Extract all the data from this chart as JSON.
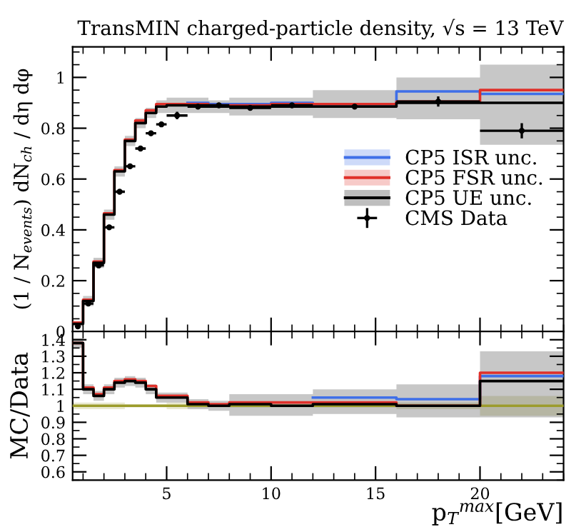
{
  "chart_data": [
    {
      "type": "step",
      "title": "TransMIN charged-particle density, √s = 13 TeV",
      "ylabel": "(1 / N$_{events}$) dN$_{ch}$ / dη dφ",
      "xlim": [
        0.5,
        24
      ],
      "ylim": [
        0,
        1.12
      ],
      "xticks": [
        {
          "value": 5,
          "label": null
        },
        {
          "value": 10,
          "label": null
        },
        {
          "value": 15,
          "label": null
        },
        {
          "value": 20,
          "label": null
        }
      ],
      "yticks": [
        0,
        0.2,
        0.4,
        0.6,
        0.8,
        1
      ],
      "tick_labels": "y",
      "grid": false,
      "legend": "right",
      "x": [
        0.5,
        1,
        1.5,
        2,
        2.5,
        3,
        3.5,
        4,
        4.5,
        5,
        6,
        7,
        8,
        10,
        12,
        16,
        20,
        24
      ],
      "series": [
        {
          "name": "CP5 ISR unc.",
          "color": "#3f6fe8",
          "values": [
            null,
            null,
            null,
            null,
            null,
            null,
            null,
            null,
            null,
            null,
            0.9,
            0.895,
            0.895,
            0.9,
            0.895,
            0.945,
            0.935,
            0.935
          ]
        },
        {
          "name": "CP5 FSR unc.",
          "color": "#e0302a",
          "values": [
            0.035,
            0.125,
            0.275,
            0.465,
            0.635,
            0.755,
            0.83,
            0.87,
            0.895,
            0.895,
            0.895,
            0.89,
            0.89,
            0.895,
            0.895,
            0.905,
            0.95,
            0.95
          ]
        },
        {
          "name": "CP5 UE unc.",
          "color": "#000000",
          "values": [
            0.03,
            0.12,
            0.27,
            0.46,
            0.63,
            0.75,
            0.82,
            0.86,
            0.885,
            0.89,
            0.89,
            0.885,
            0.885,
            0.885,
            0.885,
            0.9,
            0.9,
            0.9
          ],
          "lower": [
            0.02,
            0.1,
            0.25,
            0.44,
            0.61,
            0.73,
            0.8,
            0.84,
            0.86,
            0.86,
            0.86,
            0.86,
            0.85,
            0.85,
            0.84,
            0.835,
            0.735,
            0.735
          ],
          "upper": [
            0.04,
            0.14,
            0.29,
            0.48,
            0.65,
            0.77,
            0.84,
            0.88,
            0.91,
            0.92,
            0.92,
            0.91,
            0.92,
            0.92,
            0.95,
            1.0,
            1.05,
            1.05
          ]
        },
        {
          "name": "CMS Data",
          "type": "scatter",
          "color": "#000000",
          "marker": "circle",
          "x": [
            0.75,
            1.25,
            1.75,
            2.25,
            2.75,
            3.25,
            3.75,
            4.25,
            4.75,
            5.5,
            6.5,
            7.5,
            9,
            11,
            14,
            18,
            22
          ],
          "values": [
            0.02,
            0.11,
            0.26,
            0.41,
            0.55,
            0.65,
            0.72,
            0.78,
            0.815,
            0.85,
            0.885,
            0.89,
            0.88,
            0.89,
            0.885,
            0.905,
            0.79
          ],
          "errors": [
            null,
            0.01,
            0.01,
            0.01,
            0.01,
            0.01,
            0.01,
            0.01,
            0.01,
            0.015,
            0.01,
            0.01,
            0.01,
            0.01,
            0.01,
            0.02,
            0.03
          ],
          "xerrors": [
            null,
            0.25,
            0.25,
            0.25,
            0.25,
            0.25,
            0.25,
            0.25,
            0.25,
            0.5,
            0.5,
            0.5,
            1,
            1,
            2,
            2,
            2
          ]
        }
      ]
    },
    {
      "type": "step",
      "xlabel": "p$_{T}$$^{max}$[GeV]",
      "ylabel": "MC/Data",
      "xlim": [
        0.5,
        24
      ],
      "ylim": [
        0.55,
        1.45
      ],
      "xticks": [
        5,
        10,
        15,
        20
      ],
      "yticks": [
        0.6,
        0.7,
        0.8,
        0.9,
        1,
        1.1,
        1.2,
        1.3,
        1.4
      ],
      "grid": false,
      "x": [
        0.5,
        1,
        1.5,
        2,
        2.5,
        3,
        3.5,
        4,
        4.5,
        5,
        6,
        7,
        8,
        10,
        12,
        16,
        20,
        24
      ],
      "series": [
        {
          "color": "#9c9c2c",
          "values": [
            1,
            1,
            1,
            1,
            1,
            1,
            1,
            1,
            1,
            1,
            1,
            1,
            1,
            1,
            1,
            1,
            1,
            1
          ],
          "lower": [
            0.98,
            0.98,
            0.98,
            0.98,
            0.98,
            0.99,
            0.99,
            0.99,
            0.99,
            0.98,
            0.99,
            0.99,
            0.99,
            0.99,
            0.99,
            0.98,
            0.94,
            0.94
          ],
          "upper": [
            1.02,
            1.02,
            1.02,
            1.02,
            1.02,
            1.01,
            1.01,
            1.01,
            1.01,
            1.02,
            1.01,
            1.01,
            1.01,
            1.01,
            1.01,
            1.02,
            1.06,
            1.06
          ]
        },
        {
          "color": "#3f6fe8",
          "values": [
            null,
            null,
            null,
            null,
            null,
            null,
            null,
            null,
            null,
            null,
            null,
            null,
            null,
            null,
            1.05,
            1.04,
            1.18,
            1.18
          ]
        },
        {
          "color": "#e0302a",
          "values": [
            1.38,
            1.11,
            1.07,
            1.11,
            1.15,
            1.16,
            1.15,
            1.12,
            1.06,
            1.06,
            1.02,
            1.01,
            1.02,
            1.02,
            1.02,
            1.0,
            1.2,
            1.2
          ]
        },
        {
          "color": "#000000",
          "values": [
            1.38,
            1.1,
            1.06,
            1.1,
            1.14,
            1.15,
            1.14,
            1.1,
            1.05,
            1.05,
            1.01,
            1.0,
            1.01,
            1.0,
            1.01,
            1.0,
            1.15,
            1.15
          ],
          "lower": [
            1.35,
            1.07,
            1.03,
            1.07,
            1.11,
            1.12,
            1.11,
            1.07,
            1.02,
            1.02,
            0.98,
            0.97,
            0.94,
            0.94,
            0.95,
            0.93,
            0.93,
            0.93
          ],
          "upper": [
            1.41,
            1.13,
            1.09,
            1.13,
            1.17,
            1.18,
            1.17,
            1.13,
            1.08,
            1.08,
            1.04,
            1.03,
            1.07,
            1.07,
            1.1,
            1.13,
            1.33,
            1.33
          ]
        }
      ]
    }
  ]
}
